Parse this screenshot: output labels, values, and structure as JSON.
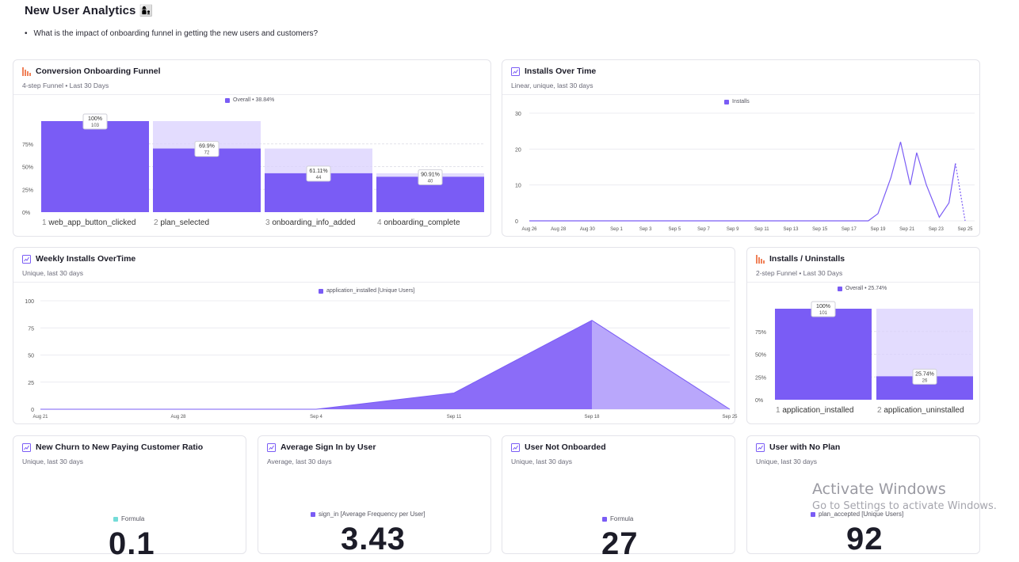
{
  "page": {
    "title": "New User Analytics",
    "title_emoji": "👩‍👦",
    "question": "What is the impact of onboarding funnel in getting the new users and customers?"
  },
  "colors": {
    "accent": "#7a5cf5",
    "accent_light": "#d9d0fd",
    "teal": "#74dcd8",
    "funnel_icon": "#f0825a"
  },
  "funnel": {
    "title": "Conversion Onboarding Funnel",
    "subtitle": "4-step Funnel • Last 30 Days",
    "legend": "Overall • 38.84%",
    "icon": "funnel-bars-icon",
    "y_ticks": [
      "75%",
      "50%",
      "25%",
      "0%"
    ],
    "steps": [
      {
        "num": "1",
        "name": "web_app_button_clicked",
        "pct": "100%",
        "count": "103",
        "value": 100
      },
      {
        "num": "2",
        "name": "plan_selected",
        "pct": "69.9%",
        "count": "72",
        "value": 69.9
      },
      {
        "num": "3",
        "name": "onboarding_info_added",
        "pct": "61.11%",
        "count": "44",
        "value": 42.7
      },
      {
        "num": "4",
        "name": "onboarding_complete",
        "pct": "90.91%",
        "count": "40",
        "value": 38.84
      }
    ]
  },
  "installs": {
    "title": "Installs Over Time",
    "subtitle": "Linear, unique, last 30 days",
    "legend": "Installs",
    "icon": "line-chart-icon"
  },
  "weekly": {
    "title": "Weekly Installs OverTime",
    "subtitle": "Unique, last 30 days",
    "legend": "application_installed [Unique Users]",
    "icon": "line-chart-icon"
  },
  "uninstalls": {
    "title": "Installs / Uninstalls",
    "subtitle": "2-step Funnel • Last 30 Days",
    "legend": "Overall • 25.74%",
    "icon": "funnel-bars-icon",
    "y_ticks": [
      "75%",
      "50%",
      "25%",
      "0%"
    ],
    "steps": [
      {
        "num": "1",
        "name": "application_installed",
        "pct": "100%",
        "count": "101",
        "value": 100
      },
      {
        "num": "2",
        "name": "application_uninstalled",
        "pct": "25.74%",
        "count": "26",
        "value": 25.74
      }
    ]
  },
  "metrics": [
    {
      "title": "New Churn to New Paying Customer Ratio",
      "subtitle": "Unique, last 30 days",
      "legend": "Formula",
      "legend_color": "teal",
      "value": "0.1"
    },
    {
      "title": "Average Sign In by User",
      "subtitle": "Average, last 30 days",
      "legend": "sign_in [Average Frequency per User]",
      "legend_color": "accent",
      "value": "3.43"
    },
    {
      "title": "User Not Onboarded",
      "subtitle": "Unique, last 30 days",
      "legend": "Formula",
      "legend_color": "accent",
      "value": "27"
    },
    {
      "title": "User with No Plan",
      "subtitle": "Unique, last 30 days",
      "legend": "plan_accepted [Unique Users]",
      "legend_color": "accent",
      "value": "92"
    }
  ],
  "watermark": {
    "line1": "Activate Windows",
    "line2": "Go to Settings to activate Windows."
  },
  "chart_data": [
    {
      "type": "line",
      "title": "Installs Over Time",
      "series": [
        {
          "name": "Installs",
          "values": [
            0,
            0,
            0,
            0,
            0,
            0,
            0,
            0,
            0,
            0,
            0,
            0,
            0,
            0,
            0,
            0,
            0,
            0,
            0,
            0,
            0,
            0,
            2,
            12,
            22,
            10,
            19,
            10,
            1,
            5,
            16,
            0
          ]
        }
      ],
      "x": [
        "Aug 26",
        "Aug 27",
        "Aug 28",
        "Aug 29",
        "Aug 30",
        "Aug 31",
        "Sep 1",
        "Sep 2",
        "Sep 3",
        "Sep 4",
        "Sep 5",
        "Sep 6",
        "Sep 7",
        "Sep 8",
        "Sep 9",
        "Sep 10",
        "Sep 11",
        "Sep 12",
        "Sep 13",
        "Sep 14",
        "Sep 15",
        "Sep 16",
        "Sep 16",
        "Sep 17",
        "Sep 18",
        "Sep 19",
        "Sep 20",
        "Sep 21",
        "Sep 22",
        "Sep 23",
        "Sep 24",
        "Sep 25"
      ],
      "x_tick_labels": [
        "Aug 26",
        "Aug 28",
        "Aug 30",
        "Sep 1",
        "Sep 3",
        "Sep 5",
        "Sep 7",
        "Sep 9",
        "Sep 11",
        "Sep 13",
        "Sep 15",
        "Sep 17",
        "Sep 19",
        "Sep 21",
        "Sep 23",
        "Sep 25"
      ],
      "y_ticks": [
        0,
        10,
        20,
        30
      ],
      "ylim": [
        0,
        30
      ]
    },
    {
      "type": "area",
      "title": "Weekly Installs OverTime",
      "categories": [
        "Aug 21",
        "Aug 28",
        "Sep 4",
        "Sep 11",
        "Sep 18",
        "Sep 25"
      ],
      "series": [
        {
          "name": "application_installed [Unique Users]",
          "values": [
            0,
            0,
            0,
            15,
            82,
            0
          ]
        }
      ],
      "y_ticks": [
        0,
        25,
        50,
        75,
        100
      ],
      "ylim": [
        0,
        100
      ]
    }
  ]
}
